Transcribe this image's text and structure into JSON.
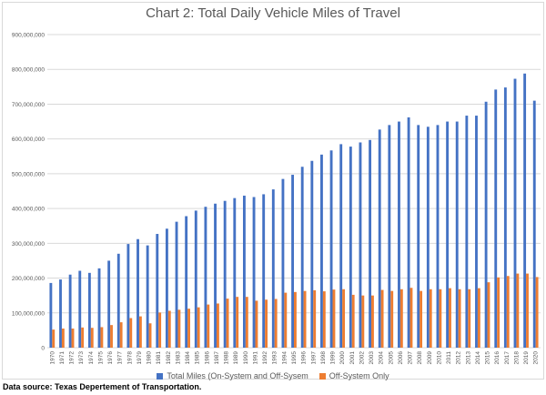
{
  "chart_data": {
    "type": "bar",
    "title": "Chart 2: Total Daily Vehicle Miles of Travel",
    "xlabel": "",
    "ylabel": "",
    "ylim": [
      0,
      900000000
    ],
    "yticks": [
      0,
      100000000,
      200000000,
      300000000,
      400000000,
      500000000,
      600000000,
      700000000,
      800000000,
      900000000
    ],
    "ytick_labels": [
      "0",
      "100,000,000",
      "200,000,000",
      "300,000,000",
      "400,000,000",
      "500,000,000",
      "600,000,000",
      "700,000,000",
      "800,000,000",
      "900,000,000"
    ],
    "grid": true,
    "legend_position": "bottom",
    "categories": [
      "1970",
      "1971",
      "1972",
      "1973",
      "1974",
      "1975",
      "1976",
      "1977",
      "1978",
      "1979",
      "1980",
      "1981",
      "1982",
      "1983",
      "1984",
      "1985",
      "1986",
      "1987",
      "1988",
      "1989",
      "1990",
      "1991",
      "1992",
      "1993",
      "1994",
      "1995",
      "1996",
      "1997",
      "1998",
      "1999",
      "2000",
      "2001",
      "2002",
      "2003",
      "2004",
      "2005",
      "2006",
      "2007",
      "2008",
      "2009",
      "2010",
      "2011",
      "2012",
      "2013",
      "2014",
      "2015",
      "2016",
      "2017",
      "2018",
      "2019",
      "2020"
    ],
    "series": [
      {
        "name": "Total Miles (On-System and Off-Sysem",
        "color": "#4472C4",
        "values": [
          186000000,
          196000000,
          210000000,
          221000000,
          215000000,
          228000000,
          250000000,
          270000000,
          298000000,
          312000000,
          294000000,
          327000000,
          342000000,
          362000000,
          378000000,
          394000000,
          405000000,
          414000000,
          422000000,
          430000000,
          437000000,
          433000000,
          441000000,
          455000000,
          485000000,
          497000000,
          520000000,
          537000000,
          555000000,
          567000000,
          585000000,
          578000000,
          590000000,
          597000000,
          627000000,
          640000000,
          650000000,
          662000000,
          640000000,
          635000000,
          640000000,
          650000000,
          650000000,
          667000000,
          667000000,
          707000000,
          742000000,
          748000000,
          773000000,
          788000000,
          710000000
        ]
      },
      {
        "name": "Off-System Only",
        "color": "#ED7D31",
        "values": [
          52000000,
          55000000,
          55000000,
          58000000,
          57000000,
          59000000,
          65000000,
          73000000,
          85000000,
          90000000,
          70000000,
          101000000,
          106000000,
          109000000,
          112000000,
          116000000,
          124000000,
          127000000,
          141000000,
          146000000,
          146000000,
          135000000,
          138000000,
          140000000,
          158000000,
          160000000,
          163000000,
          165000000,
          162000000,
          167000000,
          168000000,
          152000000,
          150000000,
          150000000,
          166000000,
          163000000,
          168000000,
          172000000,
          163000000,
          168000000,
          168000000,
          171000000,
          168000000,
          168000000,
          171000000,
          188000000,
          202000000,
          206000000,
          213000000,
          213000000,
          203000000
        ]
      }
    ]
  },
  "source_note": "Data source: Texas Depertement of Transportation."
}
